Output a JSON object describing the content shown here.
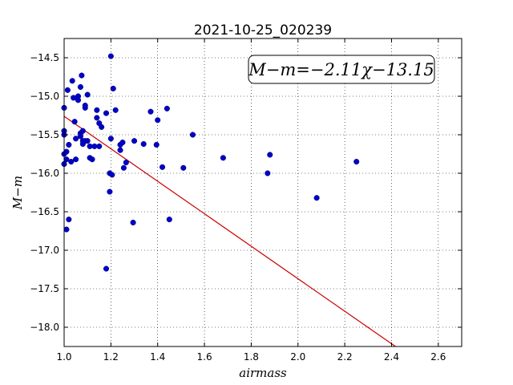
{
  "chart_data": {
    "type": "scatter",
    "title": "2021-10-25_020239",
    "xlabel": "airmass",
    "ylabel": "M−m",
    "xlim": [
      1.0,
      2.7
    ],
    "ylim": [
      -18.25,
      -14.25
    ],
    "y_inverted": true,
    "xticks": [
      "1.0",
      "1.2",
      "1.4",
      "1.6",
      "1.8",
      "2.0",
      "2.2",
      "2.4",
      "2.6"
    ],
    "yticks": [
      "−14.5",
      "−15.0",
      "−15.5",
      "−16.0",
      "−16.5",
      "−17.0",
      "−17.5",
      "−18.0"
    ],
    "grid": true,
    "annotation": "M−m=−2.11χ−13.15",
    "fit": {
      "slope": -2.11,
      "intercept": -13.15,
      "color": "#cc0000"
    },
    "point_color": "#0000cc",
    "points": [
      [
        1.0,
        -15.15
      ],
      [
        1.0,
        -15.45
      ],
      [
        1.0,
        -15.5
      ],
      [
        1.0,
        -15.75
      ],
      [
        1.0,
        -15.88
      ],
      [
        1.01,
        -15.72
      ],
      [
        1.01,
        -15.82
      ],
      [
        1.01,
        -16.73
      ],
      [
        1.015,
        -14.92
      ],
      [
        1.02,
        -15.63
      ],
      [
        1.02,
        -16.6
      ],
      [
        1.03,
        -15.85
      ],
      [
        1.035,
        -14.8
      ],
      [
        1.04,
        -15.02
      ],
      [
        1.045,
        -15.33
      ],
      [
        1.05,
        -15.55
      ],
      [
        1.05,
        -15.82
      ],
      [
        1.06,
        -15.0
      ],
      [
        1.06,
        -15.05
      ],
      [
        1.07,
        -14.88
      ],
      [
        1.07,
        -15.48
      ],
      [
        1.07,
        -15.52
      ],
      [
        1.075,
        -14.73
      ],
      [
        1.08,
        -15.45
      ],
      [
        1.08,
        -15.58
      ],
      [
        1.08,
        -15.62
      ],
      [
        1.09,
        -15.12
      ],
      [
        1.09,
        -15.15
      ],
      [
        1.09,
        -15.58
      ],
      [
        1.1,
        -14.98
      ],
      [
        1.1,
        -15.58
      ],
      [
        1.11,
        -15.65
      ],
      [
        1.11,
        -15.8
      ],
      [
        1.12,
        -15.82
      ],
      [
        1.13,
        -15.65
      ],
      [
        1.14,
        -15.18
      ],
      [
        1.14,
        -15.28
      ],
      [
        1.15,
        -15.35
      ],
      [
        1.15,
        -15.65
      ],
      [
        1.16,
        -15.4
      ],
      [
        1.18,
        -15.22
      ],
      [
        1.18,
        -17.24
      ],
      [
        1.195,
        -16.24
      ],
      [
        1.195,
        -16.0
      ],
      [
        1.2,
        -14.48
      ],
      [
        1.2,
        -15.55
      ],
      [
        1.205,
        -16.02
      ],
      [
        1.21,
        -14.9
      ],
      [
        1.22,
        -15.18
      ],
      [
        1.24,
        -15.63
      ],
      [
        1.24,
        -15.7
      ],
      [
        1.25,
        -15.6
      ],
      [
        1.255,
        -15.93
      ],
      [
        1.265,
        -15.86
      ],
      [
        1.295,
        -16.64
      ],
      [
        1.3,
        -15.58
      ],
      [
        1.34,
        -15.62
      ],
      [
        1.37,
        -15.2
      ],
      [
        1.395,
        -15.63
      ],
      [
        1.4,
        -15.31
      ],
      [
        1.42,
        -15.92
      ],
      [
        1.44,
        -15.16
      ],
      [
        1.45,
        -16.6
      ],
      [
        1.51,
        -15.93
      ],
      [
        1.55,
        -15.5
      ],
      [
        1.68,
        -15.8
      ],
      [
        1.87,
        -16.0
      ],
      [
        1.88,
        -15.76
      ],
      [
        2.08,
        -16.32
      ],
      [
        2.25,
        -15.85
      ]
    ]
  }
}
